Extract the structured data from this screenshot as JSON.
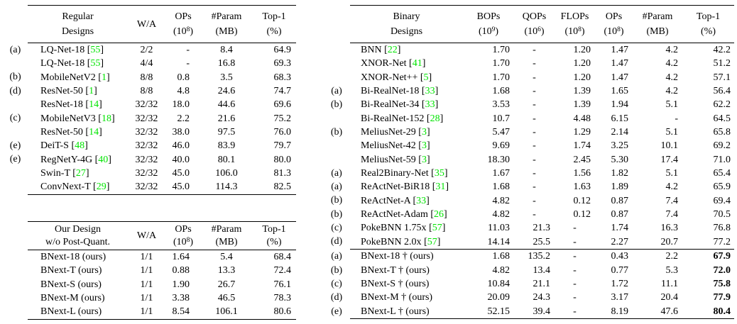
{
  "colors": {
    "citation_green": "#00e400",
    "text": "#000000",
    "rule": "#000000",
    "background": "#ffffff"
  },
  "tables": {
    "regular": {
      "headers": [
        [
          "Regular",
          "Designs"
        ],
        [
          "W/A",
          ""
        ],
        [
          "OPs",
          "(10^8)"
        ],
        [
          "#Param",
          "(MB)"
        ],
        [
          "Top-1",
          "(%)"
        ]
      ],
      "groups": [
        {
          "rows": [
            {
              "marker": "(a)",
              "name": "LQ-Net-18",
              "cite": "55",
              "values": [
                "2/2",
                "-",
                "8.4",
                "64.9"
              ]
            },
            {
              "marker": "",
              "name": "LQ-Net-18",
              "cite": "55",
              "values": [
                "4/4",
                "-",
                "16.8",
                "69.3"
              ]
            },
            {
              "marker": "(b)",
              "name": "MobileNetV2",
              "cite": "1",
              "values": [
                "8/8",
                "0.8",
                "3.5",
                "68.3"
              ]
            },
            {
              "marker": "(d)",
              "name": "ResNet-50",
              "cite": "1",
              "values": [
                "8/8",
                "4.8",
                "24.6",
                "74.7"
              ]
            },
            {
              "marker": "",
              "name": "ResNet-18",
              "cite": "14",
              "values": [
                "32/32",
                "18.0",
                "44.6",
                "69.6"
              ]
            },
            {
              "marker": "(c)",
              "name": "MobileNetV3",
              "cite": "18",
              "values": [
                "32/32",
                "2.2",
                "21.6",
                "75.2"
              ]
            },
            {
              "marker": "",
              "name": "ResNet-50",
              "cite": "14",
              "values": [
                "32/32",
                "38.0",
                "97.5",
                "76.0"
              ]
            },
            {
              "marker": "(e)",
              "name": "DeiT-S",
              "cite": "48",
              "values": [
                "32/32",
                "46.0",
                "83.9",
                "79.7"
              ]
            },
            {
              "marker": "(e)",
              "name": "RegNetY-4G",
              "cite": "40",
              "values": [
                "32/32",
                "40.0",
                "80.1",
                "80.0"
              ]
            },
            {
              "marker": "",
              "name": "Swin-T",
              "cite": "27",
              "values": [
                "32/32",
                "45.0",
                "106.0",
                "81.3"
              ]
            },
            {
              "marker": "",
              "name": "ConvNext-T",
              "cite": "29",
              "values": [
                "32/32",
                "45.0",
                "114.3",
                "82.5"
              ]
            }
          ]
        }
      ]
    },
    "ours": {
      "headers": [
        [
          "Our Design",
          "w/o Post-Quant."
        ],
        [
          "W/A",
          ""
        ],
        [
          "OPs",
          "(10^8)"
        ],
        [
          "#Param",
          "(MB)"
        ],
        [
          "Top-1",
          "(%)"
        ]
      ],
      "groups": [
        {
          "rows": [
            {
              "marker": "",
              "name": "BNext-18 (ours)",
              "cite": "",
              "values": [
                "1/1",
                "1.64",
                "5.4",
                "68.4"
              ]
            },
            {
              "marker": "",
              "name": "BNext-T (ours)",
              "cite": "",
              "values": [
                "1/1",
                "0.88",
                "13.3",
                "72.4"
              ]
            },
            {
              "marker": "",
              "name": "BNext-S (ours)",
              "cite": "",
              "values": [
                "1/1",
                "1.90",
                "26.7",
                "76.1"
              ]
            },
            {
              "marker": "",
              "name": "BNext-M (ours)",
              "cite": "",
              "values": [
                "1/1",
                "3.38",
                "46.5",
                "78.3"
              ]
            },
            {
              "marker": "",
              "name": "BNext-L (ours)",
              "cite": "",
              "values": [
                "1/1",
                "8.54",
                "106.1",
                "80.6"
              ]
            }
          ]
        }
      ]
    },
    "binary": {
      "headers": [
        [
          "Binary",
          "Designs"
        ],
        [
          "BOPs",
          "(10^9)"
        ],
        [
          "QOPs",
          "(10^6)"
        ],
        [
          "FLOPs",
          "(10^8)"
        ],
        [
          "OPs",
          "(10^8)"
        ],
        [
          "#Param",
          "(MB)"
        ],
        [
          "Top-1",
          "(%)"
        ]
      ],
      "groups": [
        {
          "rows": [
            {
              "marker": "",
              "name": "BNN",
              "cite": "22",
              "values": [
                "1.70",
                "-",
                "1.20",
                "1.47",
                "4.2",
                "42.2"
              ]
            },
            {
              "marker": "",
              "name": "XNOR-Net",
              "cite": "41",
              "values": [
                "1.70",
                "-",
                "1.20",
                "1.47",
                "4.2",
                "51.2"
              ]
            },
            {
              "marker": "",
              "name": "XNOR-Net++",
              "cite": "5",
              "values": [
                "1.70",
                "-",
                "1.20",
                "1.47",
                "4.2",
                "57.1"
              ]
            },
            {
              "marker": "(a)",
              "name": "Bi-RealNet-18",
              "cite": "33",
              "values": [
                "1.68",
                "-",
                "1.39",
                "1.65",
                "4.2",
                "56.4"
              ]
            },
            {
              "marker": "(b)",
              "name": "Bi-RealNet-34",
              "cite": "33",
              "values": [
                "3.53",
                "-",
                "1.39",
                "1.94",
                "5.1",
                "62.2"
              ]
            },
            {
              "marker": "",
              "name": "Bi-RealNet-152",
              "cite": "28",
              "values": [
                "10.7",
                "-",
                "4.48",
                "6.15",
                "-",
                "64.5"
              ]
            },
            {
              "marker": "(b)",
              "name": "MeliusNet-29",
              "cite": "3",
              "values": [
                "5.47",
                "-",
                "1.29",
                "2.14",
                "5.1",
                "65.8"
              ]
            },
            {
              "marker": "",
              "name": "MeliusNet-42",
              "cite": "3",
              "values": [
                "9.69",
                "-",
                "1.74",
                "3.25",
                "10.1",
                "69.2"
              ]
            },
            {
              "marker": "",
              "name": "MeliusNet-59",
              "cite": "3",
              "values": [
                "18.30",
                "-",
                "2.45",
                "5.30",
                "17.4",
                "71.0"
              ]
            },
            {
              "marker": "(a)",
              "name": "Real2Binary-Net",
              "cite": "35",
              "values": [
                "1.67",
                "-",
                "1.56",
                "1.82",
                "5.1",
                "65.4"
              ]
            },
            {
              "marker": "(a)",
              "name": "ReActNet-BiR18",
              "cite": "31",
              "values": [
                "1.68",
                "-",
                "1.63",
                "1.89",
                "4.2",
                "65.9"
              ]
            },
            {
              "marker": "(b)",
              "name": "ReActNet-A",
              "cite": "33",
              "values": [
                "4.82",
                "-",
                "0.12",
                "0.87",
                "7.4",
                "69.4"
              ]
            },
            {
              "marker": "(b)",
              "name": "ReActNet-Adam",
              "cite": "26",
              "values": [
                "4.82",
                "-",
                "0.12",
                "0.87",
                "7.4",
                "70.5"
              ]
            },
            {
              "marker": "(c)",
              "name": "PokeBNN 1.75x",
              "cite": "57",
              "values": [
                "11.03",
                "21.3",
                "-",
                "1.74",
                "16.3",
                "76.8"
              ]
            },
            {
              "marker": "(d)",
              "name": "PokeBNN 2.0x",
              "cite": "57",
              "values": [
                "14.14",
                "25.5",
                "-",
                "2.27",
                "20.7",
                "77.2"
              ]
            }
          ]
        },
        {
          "rows": [
            {
              "marker": "(a)",
              "name": "BNext-18 † (ours)",
              "cite": "",
              "values": [
                "1.68",
                "135.2",
                "-",
                "0.43",
                "2.2",
                "67.9"
              ],
              "bold_last": true
            },
            {
              "marker": "(b)",
              "name": "BNext-T † (ours)",
              "cite": "",
              "values": [
                "4.82",
                "13.4",
                "-",
                "0.77",
                "5.3",
                "72.0"
              ],
              "bold_last": true
            },
            {
              "marker": "(c)",
              "name": "BNext-S † (ours)",
              "cite": "",
              "values": [
                "10.84",
                "21.1",
                "-",
                "1.72",
                "11.1",
                "75.8"
              ],
              "bold_last": true
            },
            {
              "marker": "(d)",
              "name": "BNext-M † (ours)",
              "cite": "",
              "values": [
                "20.09",
                "24.3",
                "-",
                "3.17",
                "20.4",
                "77.9"
              ],
              "bold_last": true
            },
            {
              "marker": "(e)",
              "name": "BNext-L † (ours)",
              "cite": "",
              "values": [
                "52.15",
                "39.4",
                "-",
                "8.19",
                "47.6",
                "80.4"
              ],
              "bold_last": true
            }
          ]
        }
      ]
    }
  }
}
